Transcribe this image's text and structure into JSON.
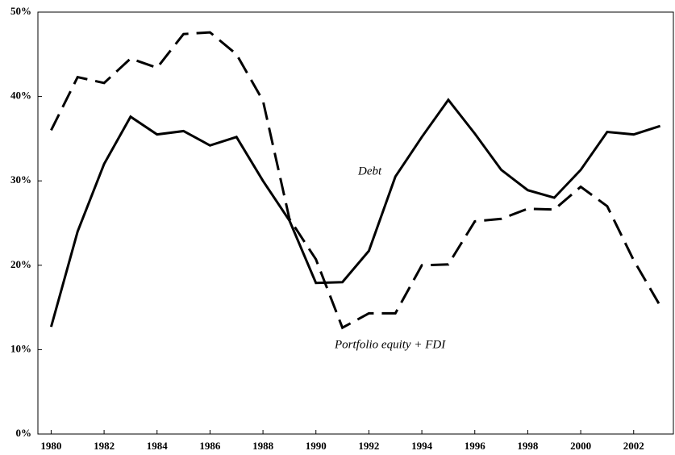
{
  "chart_data": {
    "type": "line",
    "x": [
      1980,
      1981,
      1982,
      1983,
      1984,
      1985,
      1986,
      1987,
      1988,
      1989,
      1990,
      1991,
      1992,
      1993,
      1994,
      1995,
      1996,
      1997,
      1998,
      1999,
      2000,
      2001,
      2002,
      2003
    ],
    "series": [
      {
        "name": "Debt",
        "color": "#000000",
        "dash": "solid",
        "values": [
          12.7,
          24,
          32,
          37.6,
          35.5,
          35.9,
          34.2,
          35.2,
          30,
          25.3,
          17.9,
          18,
          21.7,
          30.5,
          35.2,
          39.6,
          35.6,
          31.3,
          28.9,
          28,
          31.3,
          35.8,
          35.5,
          36.5
        ]
      },
      {
        "name": "Portfolio equity + FDI",
        "color": "#000000",
        "dash": "dashed",
        "values": [
          36,
          42.3,
          41.6,
          44.5,
          43.4,
          47.4,
          47.6,
          45,
          39.5,
          25.5,
          20.7,
          12.6,
          14.3,
          14.3,
          20,
          20.1,
          25.2,
          25.5,
          26.7,
          26.6,
          29.3,
          27,
          20.6,
          15.2
        ]
      }
    ],
    "xlim": [
      1979.5,
      2003.5
    ],
    "xticks": [
      1980,
      1982,
      1984,
      1986,
      1988,
      1990,
      1992,
      1994,
      1996,
      1998,
      2000,
      2002
    ],
    "ylim": [
      0,
      50
    ],
    "yticks": [
      {
        "value": 0,
        "label": "0%"
      },
      {
        "value": 10,
        "label": "10%"
      },
      {
        "value": 20,
        "label": "20%"
      },
      {
        "value": 30,
        "label": "30%"
      },
      {
        "value": 40,
        "label": "40%"
      },
      {
        "value": 50,
        "label": "50%"
      }
    ],
    "grid": false
  }
}
